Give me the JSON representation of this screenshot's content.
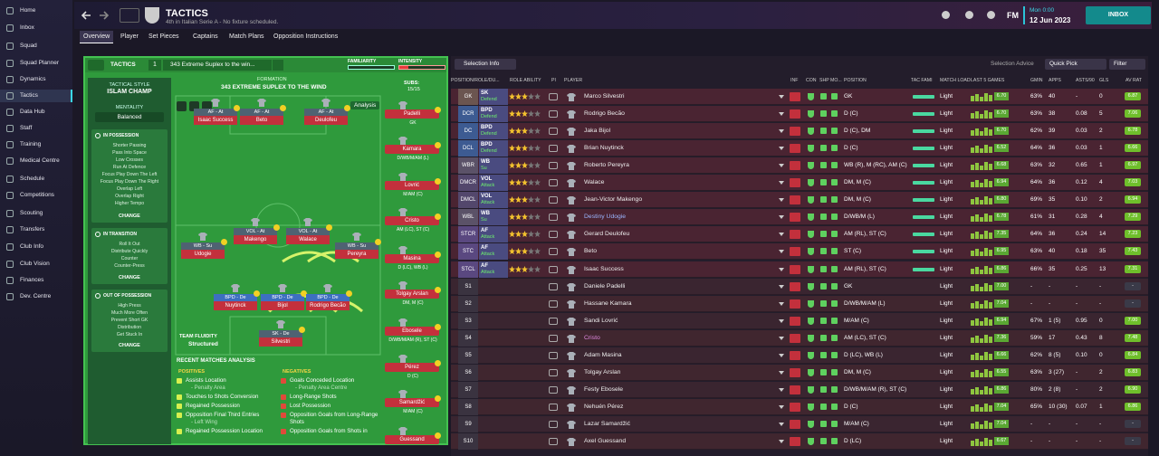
{
  "sidebar": {
    "items": [
      "Home",
      "Inbox",
      "Squad",
      "Squad Planner",
      "Dynamics",
      "Tactics",
      "Data Hub",
      "Staff",
      "Training",
      "Medical Centre",
      "Schedule",
      "Competitions",
      "Scouting",
      "Transfers",
      "Club Info",
      "Club Vision",
      "Finances",
      "Dev. Centre"
    ],
    "active": 5
  },
  "header": {
    "title": "TACTICS",
    "subtitle": "4th in Italian Serie A - No fixture scheduled.",
    "time": "Mon 0:00",
    "date": "12 Jun 2023",
    "logo": "FM",
    "inbox": "INBOX"
  },
  "tabs": [
    "Overview",
    "Player",
    "Set Pieces",
    "Captains",
    "Match Plans",
    "Opposition Instructions"
  ],
  "tactics": {
    "label": "TACTICS",
    "slot": "1",
    "name": "343 Extreme Suplex to the win...",
    "familiarity": "FAMILIARITY",
    "intensity": "INTENSITY",
    "style_label": "TACTICAL STYLE",
    "style": "ISLAM CHAMP",
    "mentality_label": "MENTALITY",
    "mentality": "Balanced",
    "sections": [
      {
        "title": "IN POSSESSION",
        "items": [
          "Shorter Passing",
          "Pass Into Space",
          "Low Crosses",
          "Run At Defence",
          "Focus Play Down The Left",
          "Focus Play Down The Right",
          "Overlap Left",
          "Overlap Right",
          "Higher Tempo"
        ],
        "button": "CHANGE"
      },
      {
        "title": "IN TRANSITION",
        "items": [
          "Roll It Out",
          "Distribute Quickly",
          "Counter",
          "Counter-Press"
        ],
        "button": "CHANGE"
      },
      {
        "title": "OUT OF POSSESSION",
        "items": [
          "High Press",
          "Much More Often",
          "Prevent Short GK",
          "Distribution",
          "Get Stuck In"
        ],
        "button": "CHANGE"
      }
    ],
    "formation_label": "FORMATION",
    "formation": "343 EXTREME SUPLEX TO THE WIND",
    "subs_label": "SUBS:",
    "subs_count": "15/15",
    "analysis": "Analysis",
    "fluidity_label": "TEAM FLUIDITY",
    "fluidity": "Structured",
    "pitch": [
      {
        "role": "AF - At",
        "name": "Isaac Success"
      },
      {
        "role": "AF - At",
        "name": "Beto"
      },
      {
        "role": "AF - At",
        "name": "Deulofeu"
      },
      {
        "role": "VOL - At",
        "name": "Makengo"
      },
      {
        "role": "VOL - At",
        "name": "Walace"
      },
      {
        "role": "WB - Su",
        "name": "Udogie"
      },
      {
        "role": "WB - Su",
        "name": "Pereyra"
      },
      {
        "role": "BPD - De",
        "name": "Nuytinck"
      },
      {
        "role": "BPD - De",
        "name": "Bijol"
      },
      {
        "role": "BPD - De",
        "name": "Rodrigo Becão"
      },
      {
        "role": "SK - De",
        "name": "Silvestri"
      }
    ],
    "subs": [
      {
        "name": "Padelli",
        "position": "GK"
      },
      {
        "name": "Kamara",
        "position": "D/WB/M/AM (L)"
      },
      {
        "name": "Lovrić",
        "position": "M/AM (C)"
      },
      {
        "name": "Cristo",
        "position": "AM (LC), ST (C)"
      },
      {
        "name": "Masina",
        "position": "D (LC), WB (L)"
      },
      {
        "name": "Tolgay Arslan",
        "position": "DM, M (C)"
      },
      {
        "name": "Ebosele",
        "position": "D/WB/M/AM (R), ST (C)"
      },
      {
        "name": "Pérez",
        "position": "D (C)"
      },
      {
        "name": "Samardžić",
        "position": "M/AM (C)"
      },
      {
        "name": "Guessand"
      }
    ]
  },
  "analysis": {
    "title": "RECENT MATCHES ANALYSIS",
    "positives_label": "POSITIVES",
    "negatives_label": "NEGATIVES",
    "positives": [
      {
        "text": "Assists Location",
        "detail": "- Penalty Area"
      },
      {
        "text": "Touches to Shots Conversion"
      },
      {
        "text": "Regained Possession"
      },
      {
        "text": "Opposition Final Third Entries",
        "detail": "- Left Wing"
      },
      {
        "text": "Regained Possession Location"
      }
    ],
    "negatives": [
      {
        "text": "Goals Conceded Location",
        "detail": "- Penalty Area Centre"
      },
      {
        "text": "Long-Range Shots"
      },
      {
        "text": "Lost Possession"
      },
      {
        "text": "Opposition Goals from Long-Range Shots"
      },
      {
        "text": "Opposition Goals from Shots in"
      }
    ]
  },
  "table": {
    "toolbar": {
      "selection_info": "Selection Info",
      "selection_advice": "Selection Advice",
      "quick_pick": "Quick Pick",
      "filter": "Filter"
    },
    "columns": [
      "POSITION/ROLE/DU...",
      "ROLE ABILITY",
      "PI",
      "PLAYER",
      "INF",
      "CON",
      "SHP",
      "MO...",
      "POSITION",
      "TAC FAMI",
      "MATCH LOAD",
      "LAST 5 GAMES",
      "GMIN",
      "APPS",
      "ASTS/90",
      "GLS",
      "AV RAT"
    ],
    "rows": [
      {
        "slot": "GK",
        "role": "SK",
        "duty": "Defend",
        "player": "Marco Silvestri",
        "position": "GK",
        "load": "Light",
        "form": "6.70",
        "gmin": "63%",
        "apps": "40",
        "asts": "-",
        "gls": "0",
        "rating": "6.87"
      },
      {
        "slot": "DCR",
        "role": "BPD",
        "duty": "Defend",
        "player": "Rodrigo Becão",
        "position": "D (C)",
        "load": "Light",
        "form": "6.70",
        "gmin": "63%",
        "apps": "38",
        "asts": "0.08",
        "gls": "5",
        "rating": "7.06"
      },
      {
        "slot": "DC",
        "role": "BPD",
        "duty": "Defend",
        "player": "Jaka Bijol",
        "position": "D (C), DM",
        "load": "Light",
        "form": "6.70",
        "gmin": "62%",
        "apps": "39",
        "asts": "0.03",
        "gls": "2",
        "rating": "6.78"
      },
      {
        "slot": "DCL",
        "role": "BPD",
        "duty": "Defend",
        "player": "Brian Nuytinck",
        "position": "D (C)",
        "load": "Light",
        "form": "6.52",
        "gmin": "64%",
        "apps": "36",
        "asts": "0.03",
        "gls": "1",
        "rating": "6.66"
      },
      {
        "slot": "WBR",
        "role": "WB",
        "duty": "Su",
        "player": "Roberto Pereyra",
        "position": "WB (R), M (RC), AM (C)",
        "load": "Light",
        "form": "6.68",
        "gmin": "63%",
        "apps": "32",
        "asts": "0.65",
        "gls": "1",
        "rating": "6.97"
      },
      {
        "slot": "DMCR",
        "role": "VOL",
        "duty": "Attack",
        "player": "Walace",
        "position": "DM, M (C)",
        "load": "Light",
        "form": "6.94",
        "gmin": "64%",
        "apps": "36",
        "asts": "0.12",
        "gls": "4",
        "rating": "7.03"
      },
      {
        "slot": "DMCL",
        "role": "VOL",
        "duty": "Attack",
        "player": "Jean-Victor Makengo",
        "position": "DM, M (C)",
        "load": "Light",
        "form": "6.80",
        "gmin": "69%",
        "apps": "35",
        "asts": "0.10",
        "gls": "2",
        "rating": "6.94"
      },
      {
        "slot": "WBL",
        "role": "WB",
        "duty": "Su",
        "player": "Destiny Udogie",
        "position": "D/WB/M (L)",
        "load": "Light",
        "form": "6.78",
        "gmin": "61%",
        "apps": "31",
        "asts": "0.28",
        "gls": "4",
        "rating": "7.29"
      },
      {
        "slot": "STCR",
        "role": "AF",
        "duty": "Attack",
        "player": "Gerard Deulofeu",
        "position": "AM (RL), ST (C)",
        "load": "Light",
        "form": "7.35",
        "gmin": "64%",
        "apps": "36",
        "asts": "0.24",
        "gls": "14",
        "rating": "7.23"
      },
      {
        "slot": "STC",
        "role": "AF",
        "duty": "Attack",
        "player": "Beto",
        "position": "ST (C)",
        "load": "Light",
        "form": "6.95",
        "gmin": "63%",
        "apps": "40",
        "asts": "0.18",
        "gls": "35",
        "rating": "7.43"
      },
      {
        "slot": "STCL",
        "role": "AF",
        "duty": "Attack",
        "player": "Isaac Success",
        "position": "AM (RL), ST (C)",
        "load": "Light",
        "form": "6.86",
        "gmin": "66%",
        "apps": "35",
        "asts": "0.25",
        "gls": "13",
        "rating": "7.31"
      },
      {
        "slot": "S1",
        "player": "Daniele Padelli",
        "position": "GK",
        "load": "Light",
        "form": "7.00",
        "gmin": "-",
        "apps": "-",
        "asts": "-",
        "gls": "-",
        "rating": "-"
      },
      {
        "slot": "S2",
        "player": "Hassane Kamara",
        "position": "D/WB/M/AM (L)",
        "load": "Light",
        "form": "7.04",
        "gmin": "-",
        "apps": "-",
        "asts": "-",
        "gls": "-",
        "rating": "-"
      },
      {
        "slot": "S3",
        "player": "Sandi Lovrić",
        "position": "M/AM (C)",
        "load": "Light",
        "form": "6.94",
        "gmin": "67%",
        "apps": "1 (5)",
        "asts": "0.95",
        "gls": "0",
        "rating": "7.00"
      },
      {
        "slot": "S4",
        "player": "Cristo",
        "position": "AM (LC), ST (C)",
        "load": "Light",
        "form": "7.36",
        "gmin": "59%",
        "apps": "17",
        "asts": "0.43",
        "gls": "8",
        "rating": "7.48"
      },
      {
        "slot": "S5",
        "player": "Adam Masina",
        "position": "D (LC), WB (L)",
        "load": "Light",
        "form": "6.66",
        "gmin": "62%",
        "apps": "8 (5)",
        "asts": "0.10",
        "gls": "0",
        "rating": "6.84"
      },
      {
        "slot": "S6",
        "player": "Tolgay Arslan",
        "position": "DM, M (C)",
        "load": "Light",
        "form": "6.55",
        "gmin": "63%",
        "apps": "3 (27)",
        "asts": "-",
        "gls": "2",
        "rating": "6.83"
      },
      {
        "slot": "S7",
        "player": "Festy Ebosele",
        "position": "D/WB/M/AM (R), ST (C)",
        "load": "Light",
        "form": "6.86",
        "gmin": "80%",
        "apps": "2 (8)",
        "asts": "-",
        "gls": "2",
        "rating": "6.90"
      },
      {
        "slot": "S8",
        "player": "Nehuén Pérez",
        "position": "D (C)",
        "load": "Light",
        "form": "7.04",
        "gmin": "65%",
        "apps": "10 (30)",
        "asts": "0.07",
        "gls": "1",
        "rating": "6.86"
      },
      {
        "slot": "S9",
        "player": "Lazar Samardžić",
        "position": "M/AM (C)",
        "load": "Light",
        "form": "7.04",
        "gmin": "-",
        "apps": "-",
        "asts": "-",
        "gls": "-",
        "rating": "-"
      },
      {
        "slot": "S10",
        "player": "Axel Guessand",
        "position": "D (LC)",
        "load": "Light",
        "form": "6.67",
        "gmin": "-",
        "apps": "-",
        "asts": "-",
        "gls": "-",
        "rating": "-"
      }
    ]
  }
}
